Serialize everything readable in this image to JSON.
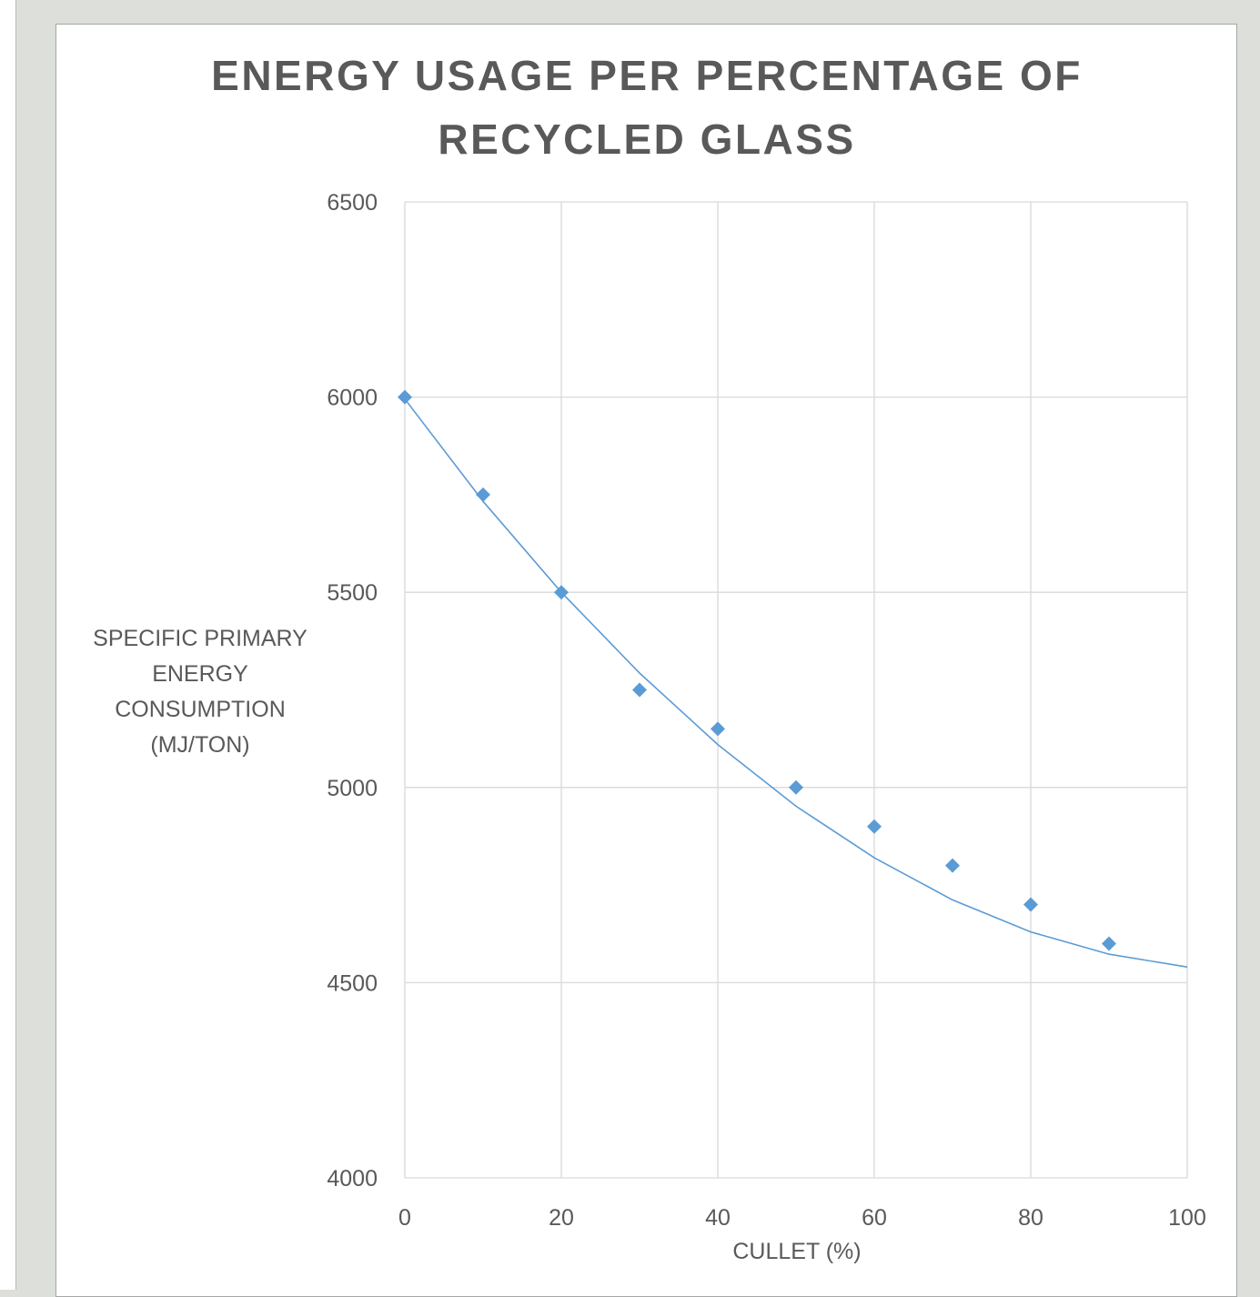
{
  "chart_data": {
    "type": "scatter",
    "title_lines": [
      "ENERGY USAGE PER PERCENTAGE OF",
      "RECYCLED GLASS"
    ],
    "xlabel": "CULLET (%)",
    "ylabel_lines": [
      "SPECIFIC PRIMARY",
      "ENERGY",
      "CONSUMPTION",
      "(MJ/TON)"
    ],
    "xlim": [
      0,
      100
    ],
    "ylim": [
      4000,
      6500
    ],
    "x_ticks": [
      0,
      20,
      40,
      60,
      80,
      100
    ],
    "y_ticks": [
      4000,
      4500,
      5000,
      5500,
      6000,
      6500
    ],
    "grid": true,
    "legend": "none",
    "series": [
      {
        "x": [
          0,
          10,
          20,
          30,
          40,
          50,
          60,
          70,
          80,
          90
        ],
        "y": [
          6000,
          5750,
          5500,
          5250,
          5150,
          5000,
          4900,
          4800,
          4700,
          4600
        ],
        "marker": "diamond",
        "color": "#5b9bd5"
      }
    ],
    "trendline": {
      "type": "polynomial-2",
      "x": [
        0,
        10,
        20,
        30,
        40,
        50,
        60,
        70,
        80,
        90,
        100
      ],
      "y": [
        5995,
        5733,
        5500,
        5293,
        5110,
        4952,
        4820,
        4712,
        4630,
        4573,
        4540
      ],
      "color": "#5b9bd5"
    }
  }
}
